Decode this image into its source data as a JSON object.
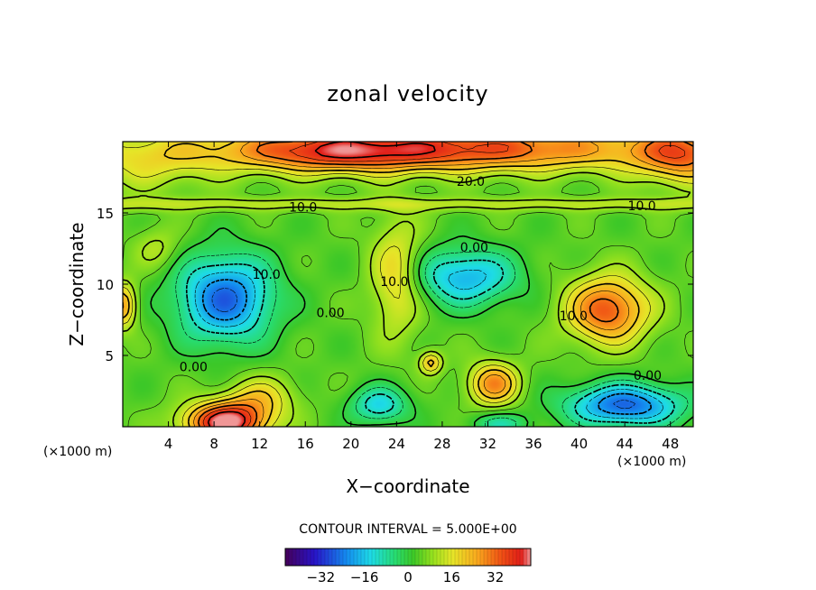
{
  "chart_data": {
    "type": "heatmap",
    "title": "zonal velocity",
    "xlabel": "X−coordinate",
    "ylabel": "Z−coordinate",
    "x_unit_left": "(×1000 m)",
    "x_unit_right": "(×1000 m)",
    "xlim": [
      0,
      50
    ],
    "ylim": [
      0,
      20
    ],
    "x_ticks": [
      4,
      8,
      12,
      16,
      20,
      24,
      28,
      32,
      36,
      40,
      44,
      48
    ],
    "y_ticks": [
      5,
      10,
      15
    ],
    "contour_interval_label": "CONTOUR INTERVAL = 5.000E+00",
    "colorbar": {
      "range": [
        -45,
        45
      ],
      "ticks": [
        -32,
        -16,
        0,
        16,
        32
      ]
    },
    "contour_labels": [
      {
        "text": "20.0",
        "x": 30.5,
        "z": 17.2
      },
      {
        "text": "10.0",
        "x": 15.8,
        "z": 15.4
      },
      {
        "text": "10.0",
        "x": 45.5,
        "z": 15.5
      },
      {
        "text": "10.0",
        "x": 12.6,
        "z": 10.7
      },
      {
        "text": "10.0",
        "x": 23.8,
        "z": 10.2
      },
      {
        "text": "10.0",
        "x": 39.5,
        "z": 7.8
      },
      {
        "text": "0.00",
        "x": 30.8,
        "z": 12.6
      },
      {
        "text": "0.00",
        "x": 18.2,
        "z": 8.0
      },
      {
        "text": "0.00",
        "x": 6.2,
        "z": 4.2
      },
      {
        "text": "0.00",
        "x": 46.0,
        "z": 3.6
      }
    ],
    "features": [
      {
        "x": 28,
        "z": 19.5,
        "u": 32,
        "sx": 20,
        "sz": 1.6
      },
      {
        "x": 18,
        "z": 19.2,
        "u": 14,
        "sx": 8,
        "sz": 1.4
      },
      {
        "x": 49,
        "z": 19.0,
        "u": 22,
        "sx": 4,
        "sz": 2.0
      },
      {
        "x": 2,
        "z": 18.5,
        "u": 10,
        "sx": 6,
        "sz": 2.0
      },
      {
        "x": 9,
        "z": 9.0,
        "u": -30,
        "sx": 4.2,
        "sz": 3.0
      },
      {
        "x": 30,
        "z": 10.5,
        "u": -22,
        "sx": 4.5,
        "sz": 2.0
      },
      {
        "x": 44,
        "z": 1.5,
        "u": -30,
        "sx": 5,
        "sz": 1.5
      },
      {
        "x": 22.5,
        "z": 1.5,
        "u": -18,
        "sx": 2.5,
        "sz": 1.3
      },
      {
        "x": 33,
        "z": 0.2,
        "u": -12,
        "sx": 2.5,
        "sz": 0.8
      },
      {
        "x": 9,
        "z": 0.3,
        "u": 42,
        "sx": 3.5,
        "sz": 1.4
      },
      {
        "x": 42.5,
        "z": 8.2,
        "u": 30,
        "sx": 3.5,
        "sz": 2.3
      },
      {
        "x": 24,
        "z": 10.5,
        "u": 16,
        "sx": 2.2,
        "sz": 4.0
      },
      {
        "x": 32.5,
        "z": 3.0,
        "u": 24,
        "sx": 2.2,
        "sz": 1.5
      },
      {
        "x": 27,
        "z": 4.5,
        "u": 18,
        "sx": 1.0,
        "sz": 0.8
      },
      {
        "x": 0,
        "z": 8.5,
        "u": 22,
        "sx": 1.2,
        "sz": 1.6
      },
      {
        "x": 12,
        "z": 2.0,
        "u": 14,
        "sx": 3,
        "sz": 1.5
      },
      {
        "x": 3,
        "z": 12.5,
        "u": 8,
        "sx": 2,
        "sz": 1.5
      }
    ],
    "background_u": 4,
    "jet_band": {
      "z": 15.6,
      "u": 8,
      "width": 0.5
    }
  },
  "colors": {
    "background": "#ffffff",
    "frame": "#000000",
    "contour": "#000000"
  }
}
